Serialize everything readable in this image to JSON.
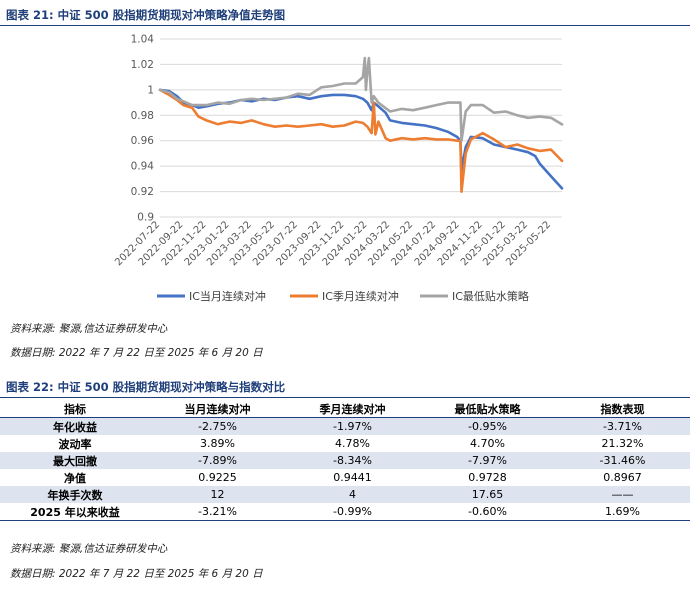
{
  "figure1": {
    "title": "图表 21:  中证 500 股指期货期现对冲策略净值走势图",
    "source": "资料来源:  聚源,信达证券研发中心",
    "date_range": "数据日期:  2022 年 7 月 22 日至 2025 年 6 月 20 日"
  },
  "figure2": {
    "title": "图表 22:  中证 500 股指期货期现对冲策略与指数对比",
    "source": "资料来源:  聚源,信达证券研发中心",
    "date_range": "数据日期:  2022 年 7 月 22 日至 2025 年 6 月 20 日"
  },
  "chart_data": {
    "type": "line",
    "ylim": [
      0.9,
      1.04
    ],
    "yticks": [
      "0.9",
      "0.92",
      "0.94",
      "0.96",
      "0.98",
      "1",
      "1.02",
      "1.04"
    ],
    "ytick_values": [
      0.9,
      0.92,
      0.94,
      0.96,
      0.98,
      1.0,
      1.02,
      1.04
    ],
    "xticks": [
      "2022-07-22",
      "2022-09-22",
      "2022-11-22",
      "2023-01-22",
      "2023-03-22",
      "2023-05-22",
      "2023-07-22",
      "2023-09-22",
      "2023-11-22",
      "2024-01-22",
      "2024-03-22",
      "2024-05-22",
      "2024-07-22",
      "2024-09-22",
      "2024-11-22",
      "2025-01-22",
      "2025-03-22",
      "2025-05-22"
    ],
    "x_end": "2025-06-20",
    "grid": "horizontal",
    "legend_position": "bottom",
    "series": [
      {
        "name": "IC当月连续对冲",
        "color": "#4472c4",
        "points": [
          [
            "2022-07-22",
            1.0
          ],
          [
            "2022-08-15",
            0.999
          ],
          [
            "2022-09-05",
            0.995
          ],
          [
            "2022-09-22",
            0.99
          ],
          [
            "2022-10-15",
            0.988
          ],
          [
            "2022-11-01",
            0.986
          ],
          [
            "2022-11-22",
            0.987
          ],
          [
            "2022-12-22",
            0.989
          ],
          [
            "2023-01-22",
            0.99
          ],
          [
            "2023-02-22",
            0.992
          ],
          [
            "2023-03-22",
            0.991
          ],
          [
            "2023-04-22",
            0.993
          ],
          [
            "2023-05-22",
            0.992
          ],
          [
            "2023-06-22",
            0.994
          ],
          [
            "2023-07-22",
            0.995
          ],
          [
            "2023-08-22",
            0.993
          ],
          [
            "2023-09-22",
            0.995
          ],
          [
            "2023-10-22",
            0.996
          ],
          [
            "2023-11-22",
            0.996
          ],
          [
            "2023-12-22",
            0.995
          ],
          [
            "2024-01-10",
            0.993
          ],
          [
            "2024-01-22",
            0.99
          ],
          [
            "2024-02-02",
            0.984
          ],
          [
            "2024-02-08",
            0.99
          ],
          [
            "2024-02-20",
            0.987
          ],
          [
            "2024-03-10",
            0.982
          ],
          [
            "2024-03-22",
            0.976
          ],
          [
            "2024-04-22",
            0.974
          ],
          [
            "2024-05-22",
            0.973
          ],
          [
            "2024-06-22",
            0.972
          ],
          [
            "2024-07-22",
            0.97
          ],
          [
            "2024-08-22",
            0.967
          ],
          [
            "2024-09-15",
            0.963
          ],
          [
            "2024-09-24",
            0.96
          ],
          [
            "2024-09-27",
            0.937
          ],
          [
            "2024-10-08",
            0.955
          ],
          [
            "2024-10-22",
            0.963
          ],
          [
            "2024-11-22",
            0.962
          ],
          [
            "2024-12-22",
            0.957
          ],
          [
            "2025-01-22",
            0.955
          ],
          [
            "2025-02-22",
            0.953
          ],
          [
            "2025-03-22",
            0.951
          ],
          [
            "2025-04-10",
            0.948
          ],
          [
            "2025-04-22",
            0.942
          ],
          [
            "2025-05-22",
            0.932
          ],
          [
            "2025-06-20",
            0.9225
          ]
        ]
      },
      {
        "name": "IC季月连续对冲",
        "color": "#ed7d31",
        "points": [
          [
            "2022-07-22",
            1.0
          ],
          [
            "2022-08-15",
            0.996
          ],
          [
            "2022-09-05",
            0.992
          ],
          [
            "2022-09-22",
            0.988
          ],
          [
            "2022-10-15",
            0.986
          ],
          [
            "2022-11-01",
            0.979
          ],
          [
            "2022-11-22",
            0.976
          ],
          [
            "2022-12-22",
            0.973
          ],
          [
            "2023-01-22",
            0.975
          ],
          [
            "2023-02-22",
            0.974
          ],
          [
            "2023-03-22",
            0.976
          ],
          [
            "2023-04-22",
            0.973
          ],
          [
            "2023-05-22",
            0.971
          ],
          [
            "2023-06-22",
            0.972
          ],
          [
            "2023-07-22",
            0.971
          ],
          [
            "2023-08-22",
            0.972
          ],
          [
            "2023-09-22",
            0.973
          ],
          [
            "2023-10-22",
            0.971
          ],
          [
            "2023-11-22",
            0.972
          ],
          [
            "2023-12-22",
            0.975
          ],
          [
            "2024-01-10",
            0.974
          ],
          [
            "2024-01-22",
            0.971
          ],
          [
            "2024-02-02",
            0.966
          ],
          [
            "2024-02-08",
            0.99
          ],
          [
            "2024-02-12",
            0.965
          ],
          [
            "2024-02-20",
            0.975
          ],
          [
            "2024-03-10",
            0.962
          ],
          [
            "2024-03-22",
            0.96
          ],
          [
            "2024-04-22",
            0.962
          ],
          [
            "2024-05-22",
            0.961
          ],
          [
            "2024-06-22",
            0.962
          ],
          [
            "2024-07-22",
            0.961
          ],
          [
            "2024-08-22",
            0.961
          ],
          [
            "2024-09-15",
            0.96
          ],
          [
            "2024-09-24",
            0.96
          ],
          [
            "2024-09-27",
            0.92
          ],
          [
            "2024-10-08",
            0.95
          ],
          [
            "2024-10-22",
            0.961
          ],
          [
            "2024-11-22",
            0.966
          ],
          [
            "2024-12-22",
            0.961
          ],
          [
            "2025-01-22",
            0.955
          ],
          [
            "2025-02-22",
            0.957
          ],
          [
            "2025-03-22",
            0.954
          ],
          [
            "2025-04-22",
            0.952
          ],
          [
            "2025-05-22",
            0.953
          ],
          [
            "2025-06-20",
            0.9441
          ]
        ]
      },
      {
        "name": "IC最低贴水策略",
        "color": "#a5a5a5",
        "points": [
          [
            "2022-07-22",
            1.0
          ],
          [
            "2022-08-15",
            0.998
          ],
          [
            "2022-09-05",
            0.993
          ],
          [
            "2022-09-22",
            0.991
          ],
          [
            "2022-10-15",
            0.988
          ],
          [
            "2022-11-01",
            0.988
          ],
          [
            "2022-11-22",
            0.988
          ],
          [
            "2022-12-22",
            0.99
          ],
          [
            "2023-01-22",
            0.989
          ],
          [
            "2023-02-22",
            0.992
          ],
          [
            "2023-03-22",
            0.993
          ],
          [
            "2023-04-22",
            0.992
          ],
          [
            "2023-05-22",
            0.993
          ],
          [
            "2023-06-22",
            0.994
          ],
          [
            "2023-07-22",
            0.997
          ],
          [
            "2023-08-22",
            0.996
          ],
          [
            "2023-09-22",
            1.002
          ],
          [
            "2023-10-22",
            1.003
          ],
          [
            "2023-11-22",
            1.005
          ],
          [
            "2023-12-22",
            1.005
          ],
          [
            "2024-01-10",
            1.01
          ],
          [
            "2024-01-15",
            1.025
          ],
          [
            "2024-01-18",
            1.0
          ],
          [
            "2024-01-22",
            1.015
          ],
          [
            "2024-01-26",
            1.025
          ],
          [
            "2024-02-02",
            0.99
          ],
          [
            "2024-02-08",
            0.995
          ],
          [
            "2024-02-20",
            0.99
          ],
          [
            "2024-03-22",
            0.983
          ],
          [
            "2024-04-22",
            0.985
          ],
          [
            "2024-05-22",
            0.984
          ],
          [
            "2024-06-22",
            0.986
          ],
          [
            "2024-07-22",
            0.988
          ],
          [
            "2024-08-22",
            0.99
          ],
          [
            "2024-09-15",
            0.99
          ],
          [
            "2024-09-24",
            0.99
          ],
          [
            "2024-09-27",
            0.96
          ],
          [
            "2024-10-08",
            0.983
          ],
          [
            "2024-10-22",
            0.988
          ],
          [
            "2024-11-22",
            0.988
          ],
          [
            "2024-12-22",
            0.982
          ],
          [
            "2025-01-22",
            0.983
          ],
          [
            "2025-02-22",
            0.98
          ],
          [
            "2025-03-22",
            0.978
          ],
          [
            "2025-04-22",
            0.979
          ],
          [
            "2025-05-22",
            0.978
          ],
          [
            "2025-06-20",
            0.9728
          ]
        ]
      }
    ]
  },
  "table": {
    "headers": [
      "指标",
      "当月连续对冲",
      "季月连续对冲",
      "最低贴水策略",
      "指数表现"
    ],
    "rows": [
      [
        "年化收益",
        "-2.75%",
        "-1.97%",
        "-0.95%",
        "-3.71%"
      ],
      [
        "波动率",
        "3.89%",
        "4.78%",
        "4.70%",
        "21.32%"
      ],
      [
        "最大回撤",
        "-7.89%",
        "-8.34%",
        "-7.97%",
        "-31.46%"
      ],
      [
        "净值",
        "0.9225",
        "0.9441",
        "0.9728",
        "0.8967"
      ],
      [
        "年换手次数",
        "12",
        "4",
        "17.65",
        "——"
      ],
      [
        "2025 年以来收益",
        "-3.21%",
        "-0.99%",
        "-0.60%",
        "1.69%"
      ]
    ]
  }
}
